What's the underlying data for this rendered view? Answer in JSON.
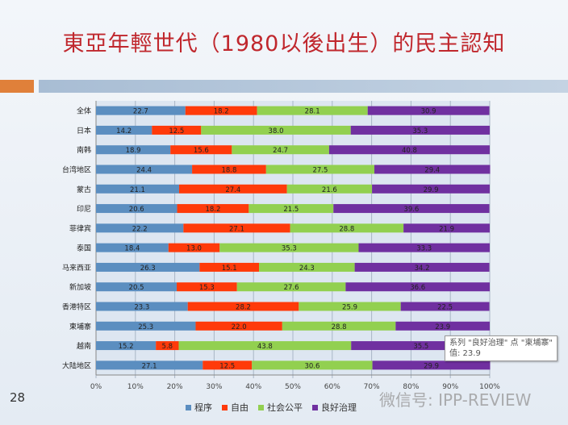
{
  "title": "東亞年輕世代（1980以後出生）的民主認知",
  "slide_number": "28",
  "watermark": "微信号: IPP-REVIEW",
  "tooltip": {
    "line1": "系列 \"良好治理\" 点 \"柬埔寨\"",
    "line2": "值: 23.9"
  },
  "chart_data": {
    "type": "bar",
    "orientation": "horizontal",
    "stacked": "percent",
    "categories": [
      "全体",
      "日本",
      "南韩",
      "台湾地区",
      "蒙古",
      "印尼",
      "菲律宾",
      "泰国",
      "马来西亚",
      "新加坡",
      "香港特区",
      "柬埔寨",
      "越南",
      "大陆地区"
    ],
    "series": [
      {
        "name": "程序",
        "color": "#5b8ec0",
        "values": [
          22.7,
          14.2,
          18.9,
          24.4,
          21.1,
          20.6,
          22.2,
          18.4,
          26.3,
          20.5,
          23.3,
          25.3,
          15.2,
          27.1
        ]
      },
      {
        "name": "自由",
        "color": "#ff3a0a",
        "values": [
          18.2,
          12.5,
          15.6,
          18.8,
          27.4,
          18.2,
          27.1,
          13.0,
          15.1,
          15.3,
          28.2,
          22.0,
          5.8,
          12.5
        ]
      },
      {
        "name": "社会公平",
        "color": "#92d050",
        "values": [
          28.1,
          38.0,
          24.7,
          27.5,
          21.6,
          21.5,
          28.8,
          35.3,
          24.3,
          27.6,
          25.9,
          28.8,
          43.8,
          30.6
        ]
      },
      {
        "name": "良好治理",
        "color": "#7030a0",
        "values": [
          30.9,
          35.3,
          40.8,
          29.4,
          29.9,
          39.6,
          21.9,
          33.3,
          34.2,
          36.6,
          22.5,
          23.9,
          35.5,
          29.9
        ]
      }
    ],
    "xticks": [
      "0%",
      "10%",
      "20%",
      "30%",
      "40%",
      "50%",
      "60%",
      "70%",
      "80%",
      "90%",
      "100%"
    ],
    "xlim": [
      0,
      100
    ],
    "grid": true,
    "legend_position": "bottom"
  }
}
